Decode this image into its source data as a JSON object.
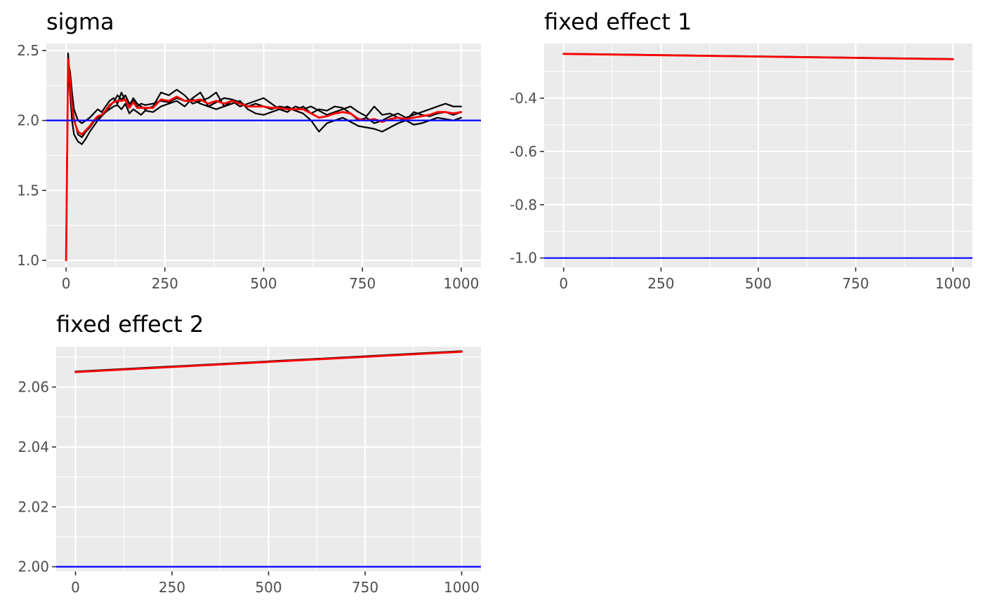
{
  "colors": {
    "panel_background": "#ebebeb",
    "grid": "#ffffff",
    "chain": "#000000",
    "mean": "#ff0000",
    "true_value": "#0000ff",
    "tick_text": "#4d4d4d"
  },
  "chart_data": [
    {
      "type": "line",
      "title": "sigma",
      "xlabel": "",
      "ylabel": "",
      "xlim": [
        -50,
        1050
      ],
      "ylim": [
        0.95,
        2.55
      ],
      "x_ticks": [
        0,
        250,
        500,
        750,
        1000
      ],
      "x_tick_labels": [
        "0",
        "250",
        "500",
        "750",
        "1000"
      ],
      "y_ticks": [
        1.0,
        1.5,
        2.0,
        2.5
      ],
      "y_tick_labels": [
        "1.0",
        "1.5",
        "2.0",
        "2.5"
      ],
      "true_value": 2.0,
      "x": [
        0,
        5,
        10,
        15,
        20,
        30,
        40,
        50,
        60,
        70,
        80,
        90,
        100,
        110,
        120,
        130,
        140,
        150,
        160,
        170,
        180,
        190,
        200,
        220,
        240,
        260,
        280,
        300,
        320,
        340,
        360,
        380,
        400,
        420,
        440,
        460,
        480,
        500,
        520,
        540,
        560,
        580,
        600,
        620,
        640,
        660,
        680,
        700,
        720,
        740,
        760,
        780,
        800,
        820,
        840,
        860,
        880,
        900,
        920,
        940,
        960,
        980,
        1000
      ],
      "series": [
        {
          "name": "",
          "role": "chain",
          "values": [
            1.0,
            2.48,
            2.3,
            2.12,
            2.02,
            1.9,
            1.88,
            1.92,
            1.95,
            1.99,
            2.02,
            2.04,
            2.06,
            2.1,
            2.13,
            2.18,
            2.15,
            2.18,
            2.12,
            2.14,
            2.1,
            2.12,
            2.11,
            2.12,
            2.14,
            2.13,
            2.16,
            2.14,
            2.15,
            2.12,
            2.1,
            2.13,
            2.16,
            2.15,
            2.13,
            2.1,
            2.12,
            2.1,
            2.08,
            2.1,
            2.09,
            2.07,
            2.1,
            2.05,
            2.08,
            2.07,
            2.1,
            2.09,
            2.05,
            2.0,
            2.02,
            1.98,
            2.0,
            2.03,
            2.05,
            2.02,
            2.04,
            2.06,
            2.08,
            2.1,
            2.12,
            2.1,
            2.1
          ]
        },
        {
          "name": "",
          "role": "chain",
          "values": [
            1.0,
            2.45,
            2.2,
            2.0,
            1.9,
            1.85,
            1.83,
            1.87,
            1.92,
            1.96,
            2.0,
            2.03,
            2.06,
            2.08,
            2.1,
            2.11,
            2.08,
            2.12,
            2.05,
            2.08,
            2.06,
            2.04,
            2.07,
            2.06,
            2.1,
            2.12,
            2.14,
            2.1,
            2.16,
            2.2,
            2.1,
            2.08,
            2.1,
            2.12,
            2.14,
            2.08,
            2.05,
            2.04,
            2.06,
            2.08,
            2.1,
            2.07,
            2.05,
            2.0,
            1.92,
            1.98,
            2.0,
            2.02,
            1.99,
            1.96,
            1.95,
            1.94,
            1.92,
            1.95,
            1.98,
            2.0,
            1.97,
            1.98,
            2.0,
            2.02,
            2.01,
            2.0,
            2.02
          ]
        },
        {
          "name": "",
          "role": "chain",
          "values": [
            1.0,
            2.42,
            2.35,
            2.2,
            2.08,
            2.0,
            1.98,
            2.0,
            2.02,
            2.05,
            2.08,
            2.06,
            2.1,
            2.14,
            2.16,
            2.12,
            2.2,
            2.14,
            2.1,
            2.16,
            2.12,
            2.1,
            2.08,
            2.1,
            2.2,
            2.18,
            2.22,
            2.18,
            2.12,
            2.14,
            2.16,
            2.2,
            2.1,
            2.14,
            2.1,
            2.12,
            2.14,
            2.16,
            2.12,
            2.08,
            2.06,
            2.1,
            2.08,
            2.1,
            2.07,
            2.04,
            2.06,
            2.08,
            2.1,
            2.06,
            2.03,
            2.1,
            2.04,
            2.05,
            2.02,
            2.0,
            2.06,
            2.04,
            2.03,
            2.05,
            2.06,
            2.04,
            2.06
          ]
        },
        {
          "name": "",
          "role": "mean",
          "values": [
            1.0,
            2.44,
            2.28,
            2.1,
            2.0,
            1.92,
            1.9,
            1.93,
            1.96,
            2.0,
            2.03,
            2.04,
            2.07,
            2.11,
            2.13,
            2.14,
            2.14,
            2.15,
            2.09,
            2.13,
            2.09,
            2.09,
            2.09,
            2.09,
            2.15,
            2.14,
            2.17,
            2.14,
            2.14,
            2.15,
            2.12,
            2.14,
            2.12,
            2.14,
            2.12,
            2.1,
            2.1,
            2.1,
            2.09,
            2.09,
            2.08,
            2.08,
            2.08,
            2.05,
            2.02,
            2.03,
            2.05,
            2.06,
            2.05,
            2.01,
            2.0,
            2.01,
            1.99,
            2.01,
            2.02,
            2.01,
            2.02,
            2.03,
            2.04,
            2.06,
            2.06,
            2.05,
            2.06
          ]
        }
      ]
    },
    {
      "type": "line",
      "title": "fixed effect 1",
      "xlabel": "",
      "ylabel": "",
      "xlim": [
        -50,
        1050
      ],
      "ylim": [
        -1.035,
        -0.195
      ],
      "x_ticks": [
        0,
        250,
        500,
        750,
        1000
      ],
      "x_tick_labels": [
        "0",
        "250",
        "500",
        "750",
        "1000"
      ],
      "y_ticks": [
        -1.0,
        -0.8,
        -0.6,
        -0.4
      ],
      "y_tick_labels": [
        "-1.0",
        "-0.8",
        "-0.6",
        "-0.4"
      ],
      "true_value": -1.0,
      "x": [
        0,
        250,
        500,
        750,
        1000
      ],
      "series": [
        {
          "name": "",
          "role": "chain",
          "values": [
            -0.233,
            -0.238,
            -0.243,
            -0.248,
            -0.253
          ]
        },
        {
          "name": "",
          "role": "mean",
          "values": [
            -0.234,
            -0.239,
            -0.244,
            -0.249,
            -0.254
          ]
        }
      ]
    },
    {
      "type": "line",
      "title": "fixed effect 2",
      "xlabel": "",
      "ylabel": "",
      "xlim": [
        -50,
        1050
      ],
      "ylim": [
        1.9985,
        2.0735
      ],
      "x_ticks": [
        0,
        250,
        500,
        750,
        1000
      ],
      "x_tick_labels": [
        "0",
        "250",
        "500",
        "750",
        "1000"
      ],
      "y_ticks": [
        2.0,
        2.02,
        2.04,
        2.06
      ],
      "y_tick_labels": [
        "2.00",
        "2.02",
        "2.04",
        "2.06"
      ],
      "true_value": 2.0,
      "x": [
        0,
        250,
        500,
        750,
        1000
      ],
      "series": [
        {
          "name": "",
          "role": "chain",
          "values": [
            2.0652,
            2.0669,
            2.0686,
            2.0703,
            2.072
          ]
        },
        {
          "name": "",
          "role": "mean",
          "values": [
            2.065,
            2.0667,
            2.0684,
            2.0701,
            2.0718
          ]
        }
      ]
    }
  ]
}
